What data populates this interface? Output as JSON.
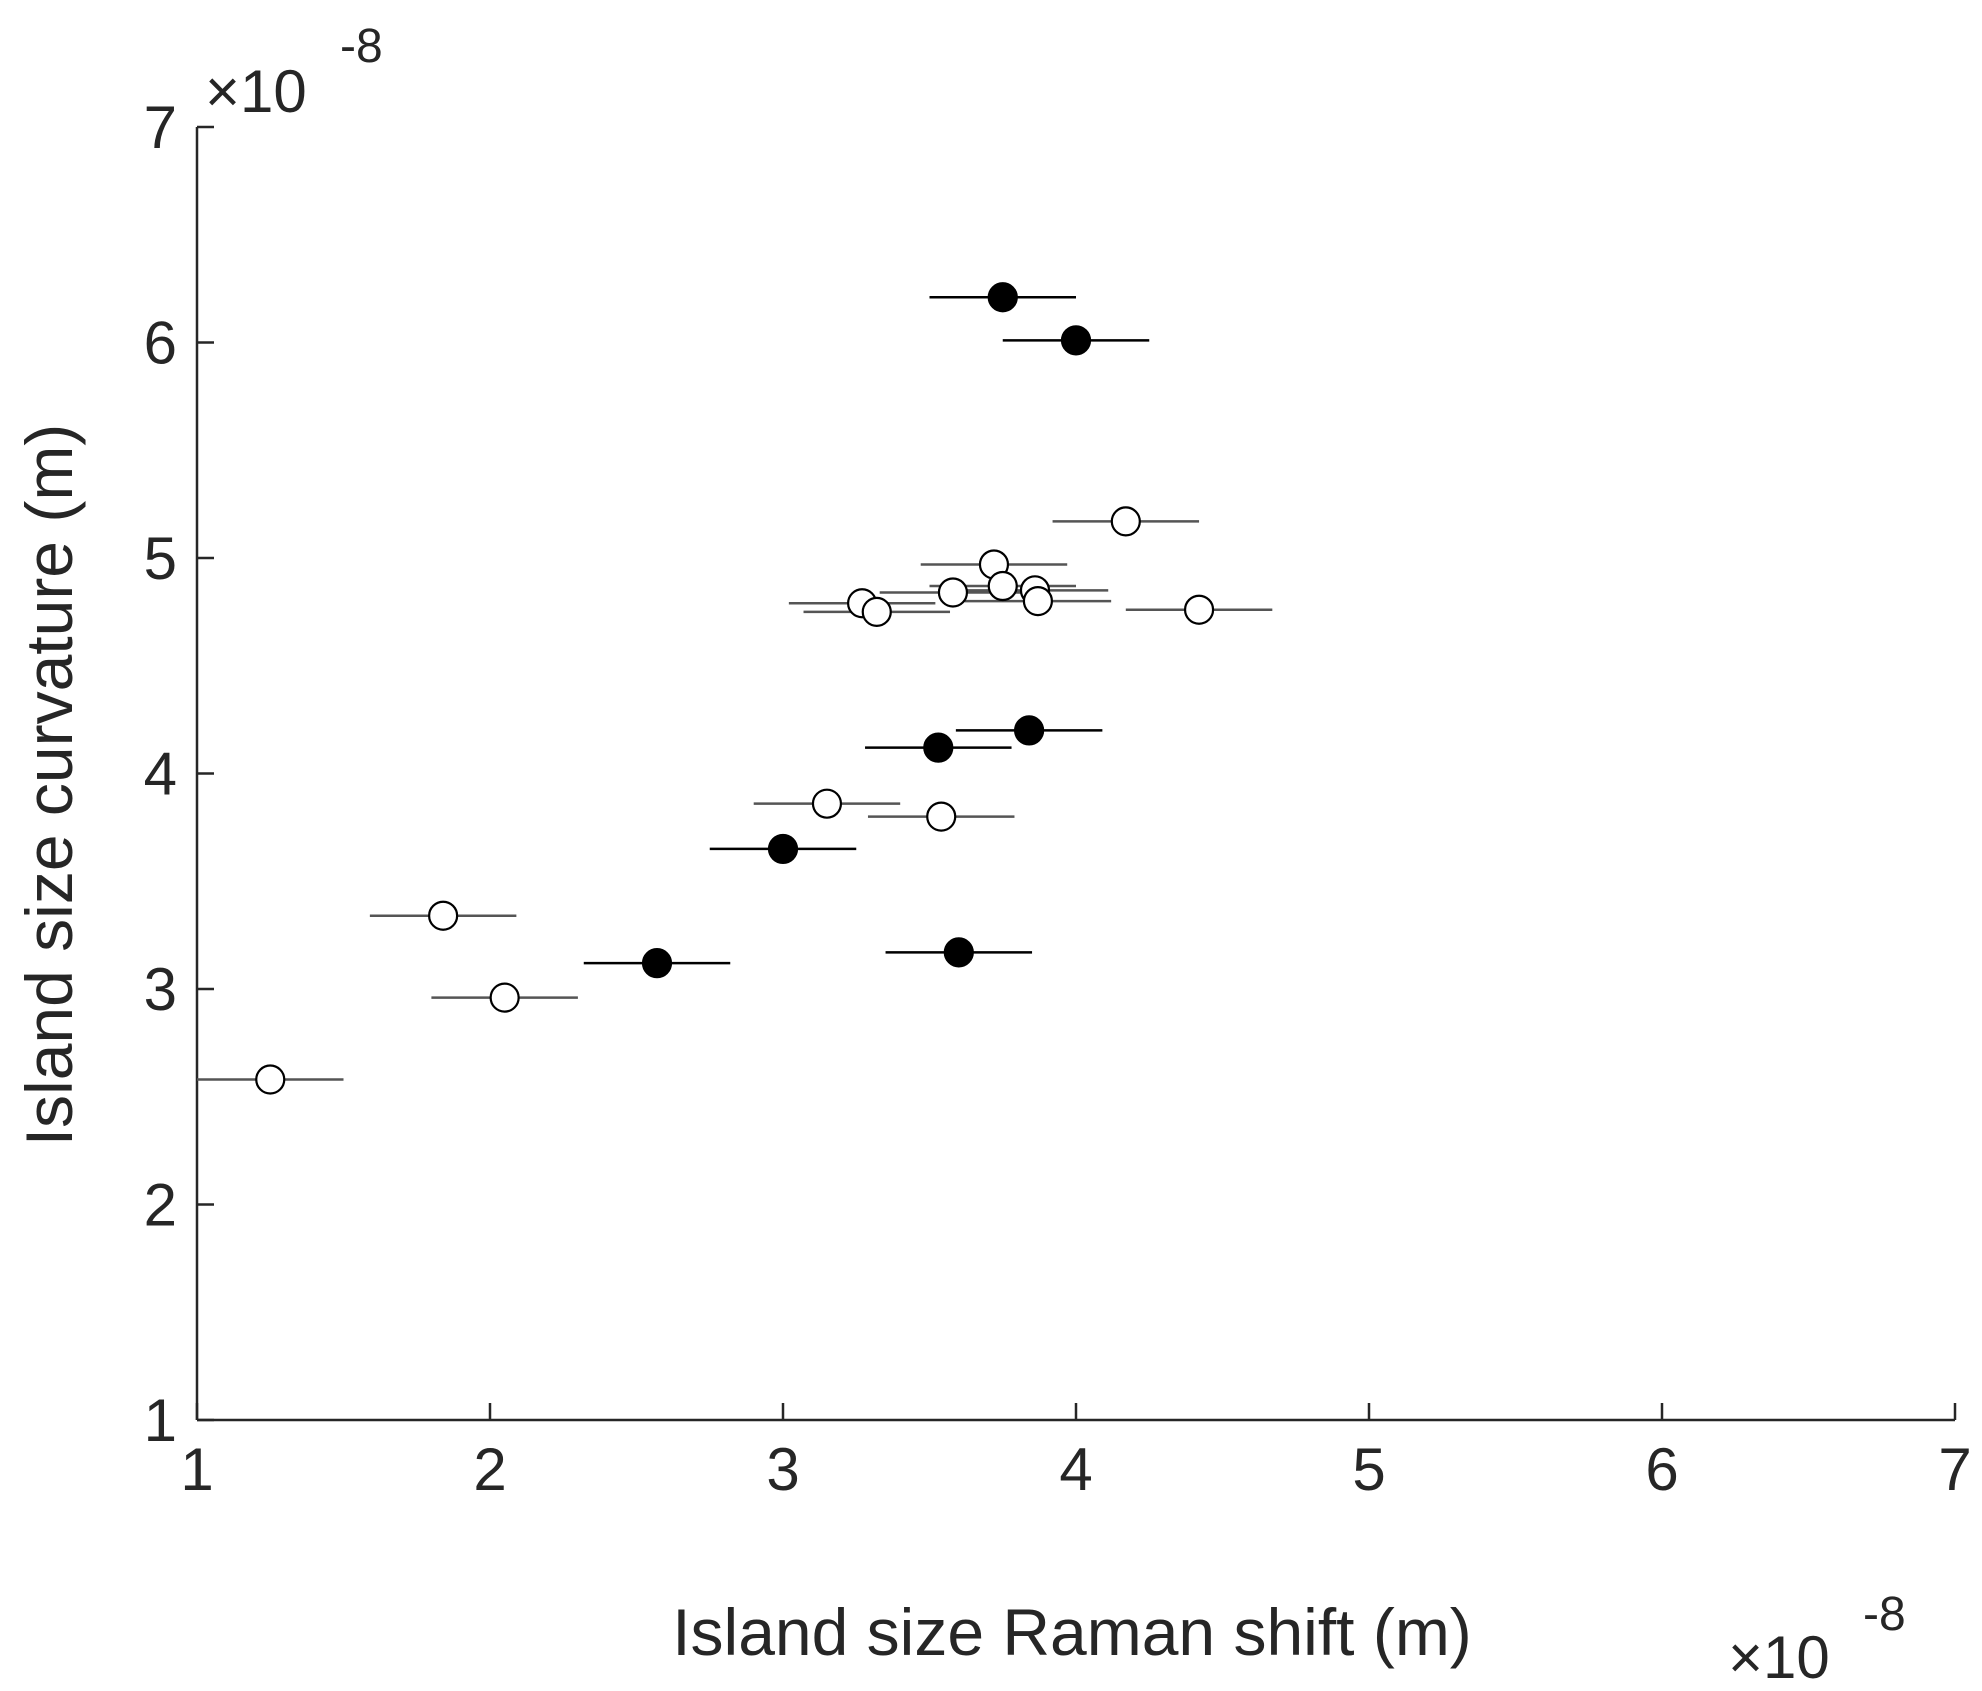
{
  "chart_data": {
    "type": "scatter",
    "xlabel": "Island size Raman shift (m)",
    "ylabel": "Island size curvature (m)",
    "x_multiplier": {
      "prefix": "×10",
      "exponent": "-8"
    },
    "y_multiplier": {
      "prefix": "×10",
      "exponent": "-8"
    },
    "xlim": [
      1,
      7
    ],
    "ylim": [
      1,
      7
    ],
    "xticks": [
      "1",
      "2",
      "3",
      "4",
      "5",
      "6",
      "7"
    ],
    "yticks": [
      "1",
      "2",
      "3",
      "4",
      "5",
      "6",
      "7"
    ],
    "grid": false,
    "error_bar_halfwidth": 0.25,
    "series": [
      {
        "marker": "filled-circle",
        "color": "#000000",
        "points": [
          {
            "x": 3.75,
            "y": 6.21
          },
          {
            "x": 4.0,
            "y": 6.01
          },
          {
            "x": 3.84,
            "y": 4.2
          },
          {
            "x": 3.53,
            "y": 4.12
          },
          {
            "x": 3.0,
            "y": 3.65
          },
          {
            "x": 2.57,
            "y": 3.12
          },
          {
            "x": 3.6,
            "y": 3.17
          }
        ]
      },
      {
        "marker": "open-circle",
        "color": "#000000",
        "points": [
          {
            "x": 4.17,
            "y": 5.17
          },
          {
            "x": 3.72,
            "y": 4.97
          },
          {
            "x": 3.86,
            "y": 4.85
          },
          {
            "x": 3.58,
            "y": 4.84
          },
          {
            "x": 3.75,
            "y": 4.87
          },
          {
            "x": 3.87,
            "y": 4.8
          },
          {
            "x": 3.27,
            "y": 4.79
          },
          {
            "x": 3.32,
            "y": 4.75
          },
          {
            "x": 4.42,
            "y": 4.76
          },
          {
            "x": 3.15,
            "y": 3.86
          },
          {
            "x": 3.54,
            "y": 3.8
          },
          {
            "x": 1.84,
            "y": 3.34
          },
          {
            "x": 2.05,
            "y": 2.96
          },
          {
            "x": 1.25,
            "y": 2.58
          }
        ]
      }
    ]
  }
}
